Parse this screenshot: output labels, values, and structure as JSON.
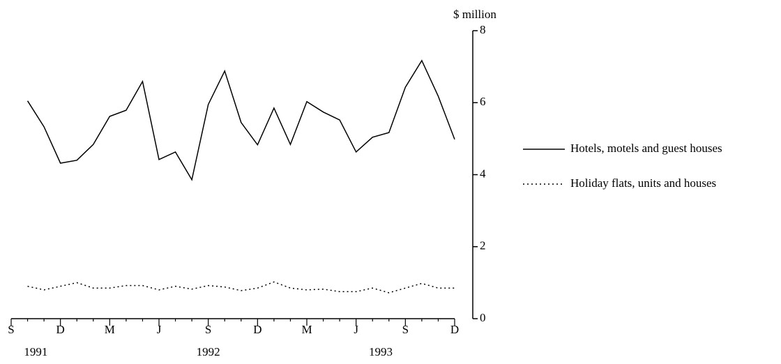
{
  "chart_data": {
    "type": "line",
    "y_axis_label": "$ million",
    "categories": [
      "S",
      null,
      null,
      "D",
      null,
      null,
      "M",
      null,
      null,
      "J",
      null,
      null,
      "S",
      null,
      null,
      "D",
      null,
      null,
      "M",
      null,
      null,
      "J",
      null,
      null,
      "S",
      null,
      null,
      "D"
    ],
    "years": [
      "1991",
      "1992",
      "1993"
    ],
    "series": [
      {
        "name": "Hotels, motels and guest houses",
        "color": "#000000",
        "dash": "solid",
        "values": [
          null,
          6.05,
          5.33,
          4.32,
          4.4,
          4.84,
          5.62,
          5.79,
          6.59,
          4.42,
          4.63,
          3.86,
          5.95,
          6.88,
          5.45,
          4.83,
          5.85,
          4.84,
          6.03,
          5.74,
          5.52,
          4.63,
          5.04,
          5.17,
          6.43,
          7.17,
          6.18,
          4.98
        ]
      },
      {
        "name": "Holiday flats, units and houses",
        "color": "#000000",
        "dash": "dotted",
        "values": [
          null,
          0.9,
          0.8,
          0.9,
          1.0,
          0.85,
          0.85,
          0.92,
          0.92,
          0.8,
          0.9,
          0.82,
          0.92,
          0.88,
          0.78,
          0.85,
          1.02,
          0.85,
          0.8,
          0.82,
          0.75,
          0.75,
          0.85,
          0.72,
          0.85,
          0.98,
          0.85,
          0.85
        ]
      }
    ],
    "ylim": [
      0,
      8
    ],
    "yticks": [
      0,
      2,
      4,
      6,
      8
    ],
    "y_axis_side": "right",
    "legend": "right",
    "grid": false
  }
}
